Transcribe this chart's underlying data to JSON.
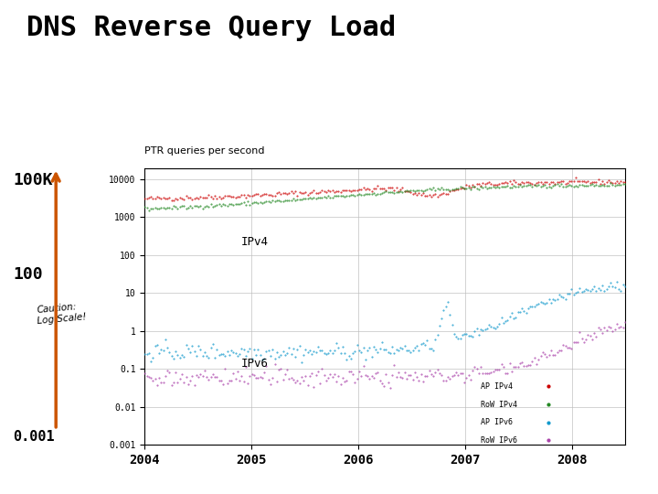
{
  "title": "DNS Reverse Query Load",
  "subtitle": "PTR queries per second",
  "legend": [
    "AP IPv4",
    "RoW IPv4",
    "AP IPv6",
    "RoW IPv6"
  ],
  "legend_colors": [
    "#cc0000",
    "#228822",
    "#1199cc",
    "#aa44aa"
  ],
  "ipv4_label": "IPv4",
  "ipv6_label": "IPv6",
  "xmin": 2004.0,
  "xmax": 2008.5,
  "ymin": 0.001,
  "ymax": 20000,
  "xtick_years": [
    2004,
    2005,
    2006,
    2007,
    2008
  ],
  "ytick_vals": [
    0.001,
    0.01,
    0.1,
    1,
    10,
    100,
    1000,
    10000
  ],
  "ytick_labels": [
    "0.001",
    "0.01",
    "0.1",
    "1",
    "10",
    "100",
    "1000",
    "10000"
  ],
  "background_color": "#ffffff",
  "grid_color": "#bbbbbb",
  "arrow_color": "#cc5500",
  "caution_text": "Caution:\nLog Scale!"
}
